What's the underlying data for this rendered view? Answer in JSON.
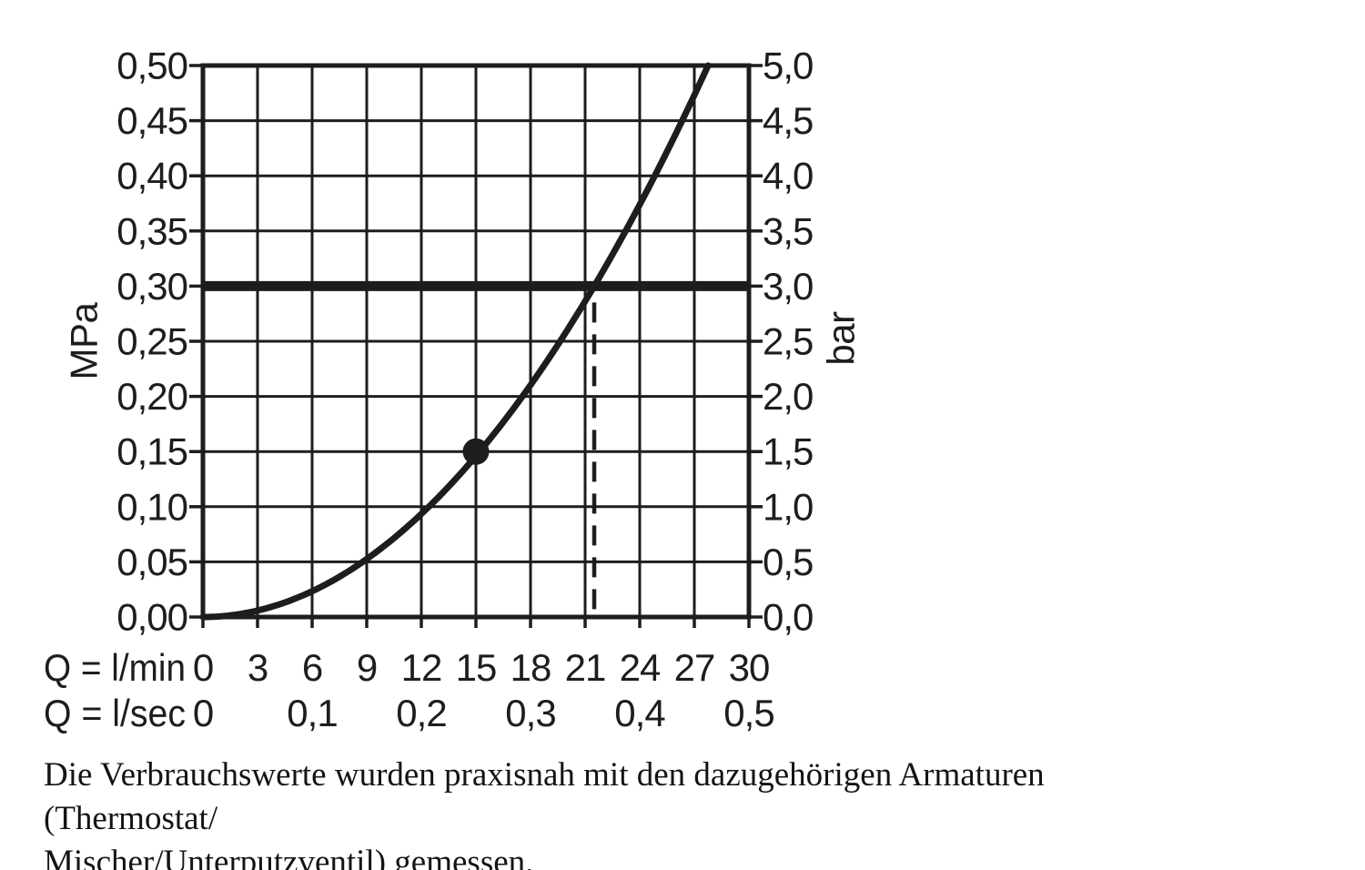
{
  "page": {
    "background": "#ffffff",
    "ink": "#1d1d1b"
  },
  "chart_data": {
    "type": "line",
    "title": "",
    "grid": true,
    "x_axis": {
      "range_l_min": [
        0,
        30
      ],
      "gridline_step_l_min": 3,
      "rows": [
        {
          "label": "Q = l/min",
          "ticks": [
            {
              "q": 0,
              "text": "0"
            },
            {
              "q": 3,
              "text": "3"
            },
            {
              "q": 6,
              "text": "6"
            },
            {
              "q": 9,
              "text": "9"
            },
            {
              "q": 12,
              "text": "12"
            },
            {
              "q": 15,
              "text": "15"
            },
            {
              "q": 18,
              "text": "18"
            },
            {
              "q": 21,
              "text": "21"
            },
            {
              "q": 24,
              "text": "24"
            },
            {
              "q": 27,
              "text": "27"
            },
            {
              "q": 30,
              "text": "30"
            }
          ]
        },
        {
          "label": "Q = l/sec",
          "ticks": [
            {
              "q": 0,
              "text": "0"
            },
            {
              "q": 6,
              "text": "0,1"
            },
            {
              "q": 12,
              "text": "0,2"
            },
            {
              "q": 18,
              "text": "0,3"
            },
            {
              "q": 24,
              "text": "0,4"
            },
            {
              "q": 30,
              "text": "0,5"
            }
          ]
        }
      ]
    },
    "y_axis_left": {
      "unit": "MPa",
      "range": [
        0,
        0.5
      ],
      "step": 0.05,
      "tick_labels_top_to_bottom": [
        "0,50",
        "0,45",
        "0,40",
        "0,35",
        "0,30",
        "0,25",
        "0,20",
        "0,15",
        "0,10",
        "0,05",
        "0,00"
      ]
    },
    "y_axis_right": {
      "unit": "bar",
      "range": [
        0,
        5
      ],
      "step": 0.5,
      "tick_labels_top_to_bottom": [
        "5,0",
        "4,5",
        "4,0",
        "3,5",
        "3,0",
        "2,5",
        "2,0",
        "1,5",
        "1,0",
        "0,5",
        "0,0"
      ]
    },
    "series": [
      {
        "name": "flow-pressure-curve",
        "power_fit": {
          "k": 0.000649,
          "exponent": 2
        },
        "points_q_lmin_p_mpa": [
          [
            0,
            0
          ],
          [
            3,
            0.006
          ],
          [
            6,
            0.023
          ],
          [
            9,
            0.053
          ],
          [
            12,
            0.093
          ],
          [
            15,
            0.146
          ],
          [
            18,
            0.21
          ],
          [
            21,
            0.286
          ],
          [
            24,
            0.374
          ],
          [
            27,
            0.473
          ],
          [
            27.8,
            0.5
          ]
        ]
      }
    ],
    "marker_point": {
      "q_l_min": 15,
      "p_mpa": 0.15,
      "p_bar": 1.5
    },
    "reference_line": {
      "p_mpa": 0.3,
      "p_bar": 3.0
    },
    "guide_line": {
      "q_l_min": 21.5,
      "style": "dashed"
    }
  },
  "caption": {
    "line1": "Die Verbrauchswerte wurden praxisnah mit den dazugehörigen Armaturen (Thermostat/",
    "line2": "Mischer/Unterputzventil) gemessen."
  }
}
